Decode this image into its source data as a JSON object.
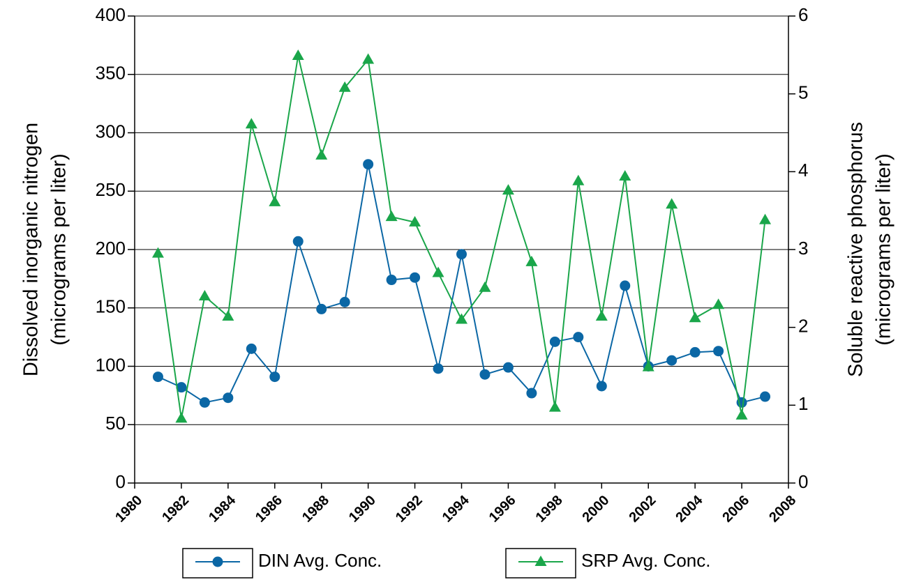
{
  "chart_data": {
    "type": "line",
    "ylabel": [
      "Dissolved inorganic nitrogen",
      "(micrograms per liter)"
    ],
    "y2label": [
      "Soluble reactive phosphorus",
      "(micrograms per liter)"
    ],
    "x": [
      1981,
      1982,
      1983,
      1984,
      1985,
      1986,
      1987,
      1988,
      1989,
      1990,
      1991,
      1992,
      1993,
      1994,
      1995,
      1996,
      1997,
      1998,
      1999,
      2000,
      2001,
      2002,
      2003,
      2004,
      2005,
      2006,
      2007
    ],
    "series": [
      {
        "name": "DIN Avg. Conc.",
        "color": "#0b67a5",
        "marker": "circle",
        "axis": "y",
        "values": [
          91,
          82,
          69,
          73,
          115,
          91,
          207,
          149,
          155,
          273,
          174,
          176,
          98,
          196,
          93,
          99,
          77,
          121,
          125,
          83,
          169,
          100,
          105,
          112,
          113,
          69,
          74
        ]
      },
      {
        "name": "SRP Avg. Conc.",
        "color": "#1aa64a",
        "marker": "triangle",
        "axis": "y2",
        "values": [
          2.95,
          0.83,
          2.4,
          2.14,
          4.61,
          3.61,
          5.49,
          4.21,
          5.08,
          5.44,
          3.42,
          3.35,
          2.7,
          2.1,
          2.51,
          3.76,
          2.84,
          0.97,
          3.88,
          2.14,
          3.94,
          1.49,
          3.58,
          2.12,
          2.29,
          0.87,
          3.38
        ]
      }
    ],
    "xlim": [
      1980,
      2008
    ],
    "xticks": [
      1980,
      1982,
      1984,
      1986,
      1988,
      1990,
      1992,
      1994,
      1996,
      1998,
      2000,
      2002,
      2004,
      2006,
      2008
    ],
    "ylim": [
      0,
      400
    ],
    "yticks": [
      0,
      50,
      100,
      150,
      200,
      250,
      300,
      350,
      400
    ],
    "y2lim": [
      0,
      6
    ],
    "y2ticks": [
      0,
      1,
      2,
      3,
      4,
      5,
      6
    ],
    "grid": true
  }
}
